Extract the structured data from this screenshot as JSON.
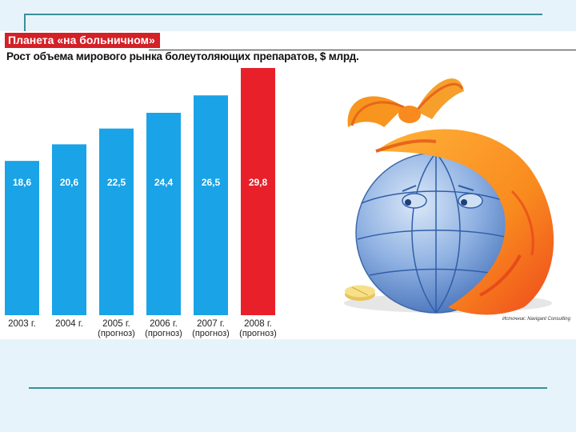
{
  "colors": {
    "bar": "#1aa3e6",
    "bar_highlight": "#e8202a",
    "title_bg": "#d42027",
    "frame_line": "#3a8f9a",
    "slide_bg": "#e6f3fb"
  },
  "chart_data": {
    "type": "bar",
    "title": "Планета «на больничном»",
    "subtitle": "Рост объема мирового рынка болеутоляющих препаратов, $ млрд.",
    "categories": [
      "2003 г.",
      "2004 г.",
      "2005 г.",
      "2006 г.",
      "2007 г.",
      "2008 г."
    ],
    "category_notes": [
      "",
      "",
      "(прогноз)",
      "(прогноз)",
      "(прогноз)",
      "(прогноз)"
    ],
    "values": [
      18.6,
      20.6,
      22.5,
      24.4,
      26.5,
      29.8
    ],
    "value_labels": [
      "18,6",
      "20,6",
      "22,5",
      "24,4",
      "26,5",
      "29,8"
    ],
    "highlight_index": 5,
    "grid": false,
    "legend": "none"
  },
  "source_note": "Источник: Navigant Consulting",
  "illustration": {
    "icon": "sick-globe-with-headscarf-icon",
    "pill_icon": "pill-icon"
  }
}
